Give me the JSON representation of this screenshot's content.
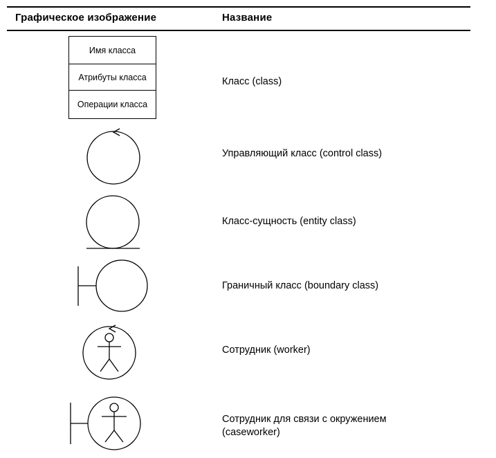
{
  "table": {
    "headers": {
      "graphic": "Графическое изображение",
      "name": "Название"
    },
    "class_box": {
      "name_section": "Имя класса",
      "attributes_section": "Атрибуты класса",
      "operations_section": "Операции класса"
    },
    "rows": [
      {
        "name": "Класс (class)"
      },
      {
        "name": "Управляющий класс (control class)"
      },
      {
        "name": "Класс-сущность (entity class)"
      },
      {
        "name": "Граничный класс (boundary class)"
      },
      {
        "name": "Сотрудник (worker)"
      },
      {
        "name_line1": "Сотрудник для связи с окружением",
        "name_line2": "(caseworker)"
      }
    ]
  }
}
